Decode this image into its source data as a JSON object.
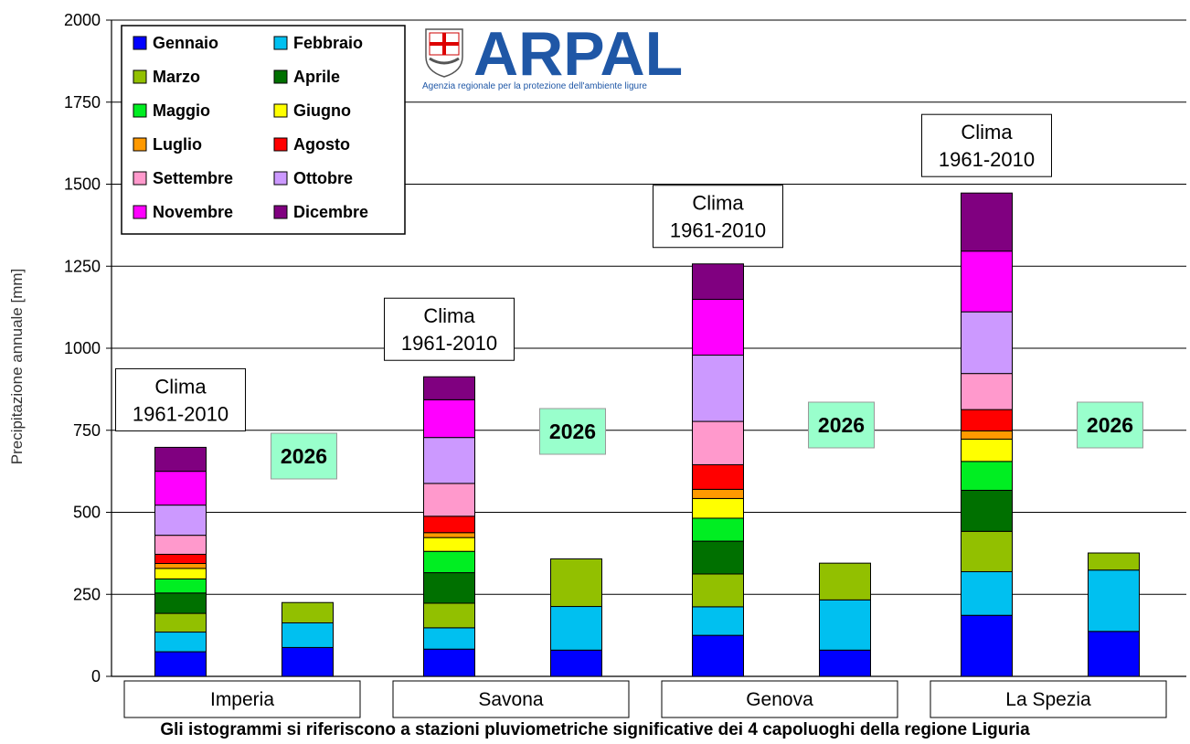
{
  "chart_data": {
    "type": "bar",
    "stacked": true,
    "ylabel": "Precipitazione annuale [mm]",
    "ylim": [
      0,
      2000
    ],
    "yticks": [
      0,
      250,
      500,
      750,
      1000,
      1250,
      1500,
      1750,
      2000
    ],
    "grid": true,
    "legend_position": "top-left",
    "categories": [
      "Imperia",
      "Savona",
      "Genova",
      "La Spezia"
    ],
    "bar_labels": [
      "Clima\n1961-2010",
      "2026"
    ],
    "climate_label_lines": [
      "Clima",
      "1961-2010"
    ],
    "current_label": "2026",
    "series": [
      {
        "name": "Gennaio",
        "color": "#0000ff",
        "values_clima": [
          75,
          83,
          125,
          186
        ],
        "values_2026": [
          88,
          80,
          80,
          137
        ]
      },
      {
        "name": "Febbraio",
        "color": "#00c0f0",
        "values_clima": [
          60,
          65,
          87,
          133
        ],
        "values_2026": [
          75,
          133,
          153,
          187
        ]
      },
      {
        "name": "Marzo",
        "color": "#92c000",
        "values_clima": [
          57,
          75,
          100,
          123
        ],
        "values_2026": [
          62,
          145,
          112,
          52
        ]
      },
      {
        "name": "Aprile",
        "color": "#007000",
        "values_clima": [
          62,
          93,
          100,
          125
        ],
        "values_2026": [
          0,
          0,
          0,
          0
        ]
      },
      {
        "name": "Maggio",
        "color": "#00ee22",
        "values_clima": [
          43,
          65,
          70,
          88
        ],
        "values_2026": [
          0,
          0,
          0,
          0
        ]
      },
      {
        "name": "Giugno",
        "color": "#ffff00",
        "values_clima": [
          32,
          42,
          60,
          68
        ],
        "values_2026": [
          0,
          0,
          0,
          0
        ]
      },
      {
        "name": "Luglio",
        "color": "#ff9900",
        "values_clima": [
          15,
          15,
          28,
          25
        ],
        "values_2026": [
          0,
          0,
          0,
          0
        ]
      },
      {
        "name": "Agosto",
        "color": "#ff0000",
        "values_clima": [
          28,
          50,
          75,
          65
        ],
        "values_2026": [
          0,
          0,
          0,
          0
        ]
      },
      {
        "name": "Settembre",
        "color": "#ff99cc",
        "values_clima": [
          58,
          100,
          132,
          110
        ],
        "values_2026": [
          0,
          0,
          0,
          0
        ]
      },
      {
        "name": "Ottobre",
        "color": "#cc99ff",
        "values_clima": [
          92,
          140,
          202,
          188
        ],
        "values_2026": [
          0,
          0,
          0,
          0
        ]
      },
      {
        "name": "Novembre",
        "color": "#ff00ff",
        "values_clima": [
          103,
          115,
          170,
          185
        ],
        "values_2026": [
          0,
          0,
          0,
          0
        ]
      },
      {
        "name": "Dicembre",
        "color": "#800080",
        "values_clima": [
          73,
          70,
          108,
          177
        ],
        "values_2026": [
          0,
          0,
          0,
          0
        ]
      }
    ]
  },
  "logo": {
    "text": "ARPAL",
    "subtitle": "Agenzia regionale per la protezione dell'ambiente ligure"
  },
  "caption": "Gli istogrammi si riferiscono a stazioni pluviometriche significative dei 4 capoluoghi della regione Liguria"
}
